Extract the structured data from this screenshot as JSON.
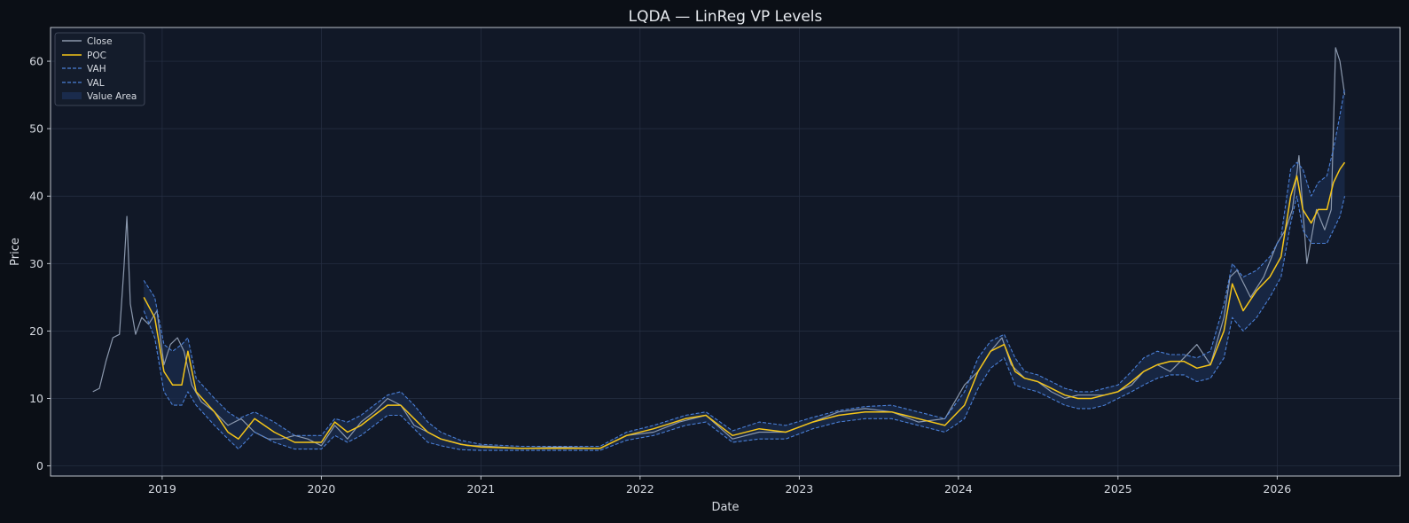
{
  "chart_data": {
    "type": "line",
    "title": "LQDA — LinReg VP Levels",
    "xlabel": "Date",
    "ylabel": "Price",
    "xlim": [
      "2018-04-20",
      "2026-10-10"
    ],
    "ylim": [
      -1.5,
      65
    ],
    "x_ticks": [
      "2019",
      "2020",
      "2021",
      "2022",
      "2023",
      "2024",
      "2025",
      "2026"
    ],
    "x_tick_dates": [
      "2019-01-01",
      "2020-01-01",
      "2021-01-01",
      "2022-01-01",
      "2023-01-01",
      "2024-01-01",
      "2025-01-01",
      "2026-01-01"
    ],
    "y_ticks": [
      0,
      10,
      20,
      30,
      40,
      50,
      60
    ],
    "grid": true,
    "legend": {
      "placement": "top-left",
      "entries": [
        "Close",
        "POC",
        "VAH",
        "VAL",
        "Value Area"
      ]
    },
    "colors": {
      "close": "#8b98ad",
      "poc": "#f5c518",
      "vah": "#4a7fd6",
      "val": "#4a7fd6",
      "value_area": "#1a2b4c",
      "plot_bg": "#111827",
      "grid": "#273044"
    },
    "series": [
      {
        "name": "Close",
        "x": [
          "2018-07-26",
          "2018-08-10",
          "2018-08-25",
          "2018-09-10",
          "2018-09-25",
          "2018-10-05",
          "2018-10-12",
          "2018-10-20",
          "2018-11-01",
          "2018-11-15",
          "2018-12-01",
          "2018-12-20",
          "2019-01-05",
          "2019-01-20",
          "2019-02-05",
          "2019-02-20",
          "2019-03-10",
          "2019-04-01",
          "2019-05-01",
          "2019-06-01",
          "2019-07-01",
          "2019-08-01",
          "2019-09-01",
          "2019-10-01",
          "2019-11-01",
          "2019-12-01",
          "2020-01-01",
          "2020-02-01",
          "2020-03-01",
          "2020-04-01",
          "2020-05-01",
          "2020-06-01",
          "2020-07-01",
          "2020-08-01",
          "2020-09-01",
          "2020-10-01",
          "2020-11-01",
          "2020-12-01",
          "2021-01-01",
          "2021-04-01",
          "2021-07-01",
          "2021-10-01",
          "2021-12-01",
          "2022-02-01",
          "2022-04-01",
          "2022-06-01",
          "2022-08-01",
          "2022-10-01",
          "2022-12-01",
          "2023-02-01",
          "2023-04-01",
          "2023-06-01",
          "2023-08-01",
          "2023-10-01",
          "2023-12-01",
          "2024-01-15",
          "2024-02-15",
          "2024-03-15",
          "2024-04-10",
          "2024-05-01",
          "2024-06-01",
          "2024-07-01",
          "2024-08-01",
          "2024-09-01",
          "2024-10-01",
          "2024-11-01",
          "2024-12-01",
          "2025-01-01",
          "2025-02-01",
          "2025-03-01",
          "2025-04-01",
          "2025-05-01",
          "2025-06-01",
          "2025-07-01",
          "2025-08-01",
          "2025-09-01",
          "2025-09-15",
          "2025-10-01",
          "2025-11-01",
          "2025-12-01",
          "2026-01-01",
          "2026-01-20",
          "2026-02-05",
          "2026-02-20",
          "2026-03-10",
          "2026-04-01",
          "2026-04-20",
          "2026-05-05",
          "2026-05-15",
          "2026-05-25",
          "2026-06-05"
        ],
        "values": [
          11,
          11.5,
          15.5,
          19,
          19.5,
          29,
          37,
          24,
          19.5,
          22,
          21,
          23,
          15,
          18,
          19,
          17,
          12,
          9.5,
          8,
          6,
          7,
          5,
          4,
          4,
          4.5,
          4,
          3,
          6,
          4,
          6.5,
          8,
          10,
          9,
          6,
          5,
          4,
          3.5,
          3,
          3,
          2.6,
          2.8,
          2.6,
          4.5,
          5,
          6.5,
          7.5,
          4,
          5,
          5,
          6.5,
          8,
          8.5,
          8,
          6.5,
          7,
          12,
          14,
          17,
          19,
          15,
          13,
          12.5,
          11,
          10,
          10.5,
          10.5,
          10.5,
          11,
          12,
          14,
          15,
          14,
          16,
          18,
          15,
          22,
          28,
          29,
          25,
          28,
          33,
          35,
          38,
          46,
          30,
          38,
          35,
          38,
          62,
          60,
          55
        ]
      },
      {
        "name": "POC",
        "x": [
          "2018-11-20",
          "2018-12-15",
          "2019-01-05",
          "2019-01-25",
          "2019-02-15",
          "2019-03-01",
          "2019-03-20",
          "2019-05-01",
          "2019-06-01",
          "2019-06-25",
          "2019-08-01",
          "2019-09-15",
          "2019-11-01",
          "2020-01-01",
          "2020-02-01",
          "2020-03-01",
          "2020-04-01",
          "2020-05-01",
          "2020-06-01",
          "2020-07-01",
          "2020-08-01",
          "2020-09-01",
          "2020-10-01",
          "2020-11-15",
          "2021-01-01",
          "2021-04-01",
          "2021-07-01",
          "2021-10-01",
          "2021-12-01",
          "2022-02-01",
          "2022-04-15",
          "2022-06-01",
          "2022-08-01",
          "2022-10-01",
          "2022-12-01",
          "2023-02-01",
          "2023-04-01",
          "2023-06-01",
          "2023-08-01",
          "2023-10-01",
          "2023-12-01",
          "2024-01-15",
          "2024-02-15",
          "2024-03-15",
          "2024-04-15",
          "2024-05-10",
          "2024-06-01",
          "2024-07-01",
          "2024-08-01",
          "2024-09-01",
          "2024-10-01",
          "2024-11-01",
          "2024-12-01",
          "2025-01-01",
          "2025-02-01",
          "2025-03-01",
          "2025-04-01",
          "2025-05-01",
          "2025-06-01",
          "2025-07-01",
          "2025-08-01",
          "2025-09-01",
          "2025-09-20",
          "2025-10-15",
          "2025-11-15",
          "2025-12-15",
          "2026-01-10",
          "2026-02-01",
          "2026-02-15",
          "2026-03-01",
          "2026-03-20",
          "2026-04-05",
          "2026-04-25",
          "2026-05-10",
          "2026-05-25",
          "2026-06-05"
        ],
        "values": [
          25,
          22,
          14,
          12,
          12,
          17,
          11,
          8,
          5,
          4,
          7,
          5,
          3.5,
          3.5,
          6.5,
          5,
          6,
          7.5,
          9,
          9,
          7,
          5,
          4,
          3.2,
          2.8,
          2.6,
          2.6,
          2.6,
          4.5,
          5.5,
          7,
          7.5,
          4.5,
          5.5,
          5,
          6.5,
          7.5,
          8,
          8,
          7,
          6,
          9,
          14,
          17,
          18,
          14,
          13,
          12.5,
          11.5,
          10.5,
          10,
          10,
          10.5,
          11,
          12.5,
          14,
          15,
          15.5,
          15.5,
          14.5,
          15,
          20,
          27,
          23,
          26,
          28,
          31,
          40,
          43,
          38,
          36,
          38,
          38,
          42,
          44,
          45
        ]
      },
      {
        "name": "VAH",
        "x": [
          "2018-11-20",
          "2018-12-15",
          "2019-01-05",
          "2019-01-25",
          "2019-02-15",
          "2019-03-01",
          "2019-03-20",
          "2019-05-01",
          "2019-06-01",
          "2019-06-25",
          "2019-08-01",
          "2019-09-15",
          "2019-11-01",
          "2020-01-01",
          "2020-02-01",
          "2020-03-01",
          "2020-04-01",
          "2020-05-01",
          "2020-06-01",
          "2020-07-01",
          "2020-08-01",
          "2020-09-01",
          "2020-10-01",
          "2020-11-15",
          "2021-01-01",
          "2021-04-01",
          "2021-07-01",
          "2021-10-01",
          "2021-12-01",
          "2022-02-01",
          "2022-04-15",
          "2022-06-01",
          "2022-08-01",
          "2022-10-01",
          "2022-12-01",
          "2023-02-01",
          "2023-04-01",
          "2023-06-01",
          "2023-08-01",
          "2023-10-01",
          "2023-12-01",
          "2024-01-15",
          "2024-02-15",
          "2024-03-15",
          "2024-04-15",
          "2024-05-10",
          "2024-06-01",
          "2024-07-01",
          "2024-08-01",
          "2024-09-01",
          "2024-10-01",
          "2024-11-01",
          "2024-12-01",
          "2025-01-01",
          "2025-02-01",
          "2025-03-01",
          "2025-04-01",
          "2025-05-01",
          "2025-06-01",
          "2025-07-01",
          "2025-08-01",
          "2025-09-01",
          "2025-09-20",
          "2025-10-15",
          "2025-11-15",
          "2025-12-15",
          "2026-01-10",
          "2026-02-01",
          "2026-02-15",
          "2026-03-01",
          "2026-03-20",
          "2026-04-05",
          "2026-04-25",
          "2026-05-10",
          "2026-05-25",
          "2026-06-05"
        ],
        "values": [
          27.5,
          25,
          18,
          17,
          18,
          19,
          13,
          10,
          8,
          7,
          8,
          6.5,
          4.5,
          4.5,
          7,
          6.5,
          7.5,
          9,
          10.5,
          11,
          9,
          6.5,
          5,
          3.8,
          3.2,
          2.9,
          2.9,
          2.9,
          5,
          6,
          7.5,
          8,
          5.2,
          6.5,
          6,
          7.2,
          8.2,
          8.8,
          9,
          8,
          7,
          11,
          16,
          18.5,
          19.5,
          16,
          14,
          13.5,
          12.5,
          11.5,
          11,
          11,
          11.5,
          12,
          14,
          16,
          17,
          16.5,
          16.5,
          16,
          17,
          24,
          30,
          28,
          29,
          31,
          34,
          44,
          45,
          44,
          40,
          42,
          43,
          47,
          52,
          56
        ]
      },
      {
        "name": "VAL",
        "x": [
          "2018-11-20",
          "2018-12-15",
          "2019-01-05",
          "2019-01-25",
          "2019-02-15",
          "2019-03-01",
          "2019-03-20",
          "2019-05-01",
          "2019-06-01",
          "2019-06-25",
          "2019-08-01",
          "2019-09-15",
          "2019-11-01",
          "2020-01-01",
          "2020-02-01",
          "2020-03-01",
          "2020-04-01",
          "2020-05-01",
          "2020-06-01",
          "2020-07-01",
          "2020-08-01",
          "2020-09-01",
          "2020-10-01",
          "2020-11-15",
          "2021-01-01",
          "2021-04-01",
          "2021-07-01",
          "2021-10-01",
          "2021-12-01",
          "2022-02-01",
          "2022-04-15",
          "2022-06-01",
          "2022-08-01",
          "2022-10-01",
          "2022-12-01",
          "2023-02-01",
          "2023-04-01",
          "2023-06-01",
          "2023-08-01",
          "2023-10-01",
          "2023-12-01",
          "2024-01-15",
          "2024-02-15",
          "2024-03-15",
          "2024-04-15",
          "2024-05-10",
          "2024-06-01",
          "2024-07-01",
          "2024-08-01",
          "2024-09-01",
          "2024-10-01",
          "2024-11-01",
          "2024-12-01",
          "2025-01-01",
          "2025-02-01",
          "2025-03-01",
          "2025-04-01",
          "2025-05-01",
          "2025-06-01",
          "2025-07-01",
          "2025-08-01",
          "2025-09-01",
          "2025-09-20",
          "2025-10-15",
          "2025-11-15",
          "2025-12-15",
          "2026-01-10",
          "2026-02-01",
          "2026-02-15",
          "2026-03-01",
          "2026-03-20",
          "2026-04-05",
          "2026-04-25",
          "2026-05-10",
          "2026-05-25",
          "2026-06-05"
        ],
        "values": [
          23,
          19,
          11,
          9,
          9,
          11,
          9,
          6,
          4,
          2.5,
          5,
          3.5,
          2.5,
          2.5,
          4.5,
          3.5,
          4.5,
          6,
          7.5,
          7.5,
          5.5,
          3.5,
          3,
          2.4,
          2.3,
          2.3,
          2.3,
          2.3,
          3.8,
          4.5,
          6,
          6.5,
          3.5,
          4,
          4,
          5.5,
          6.5,
          7,
          7,
          6,
          5,
          7,
          11.5,
          14.5,
          16,
          12,
          11.5,
          11,
          10,
          9,
          8.5,
          8.5,
          9,
          10,
          11,
          12,
          13,
          13.5,
          13.5,
          12.5,
          13,
          16,
          22,
          20,
          22,
          25,
          28,
          36,
          40,
          35,
          33,
          33,
          33,
          35,
          37,
          40
        ]
      }
    ]
  }
}
